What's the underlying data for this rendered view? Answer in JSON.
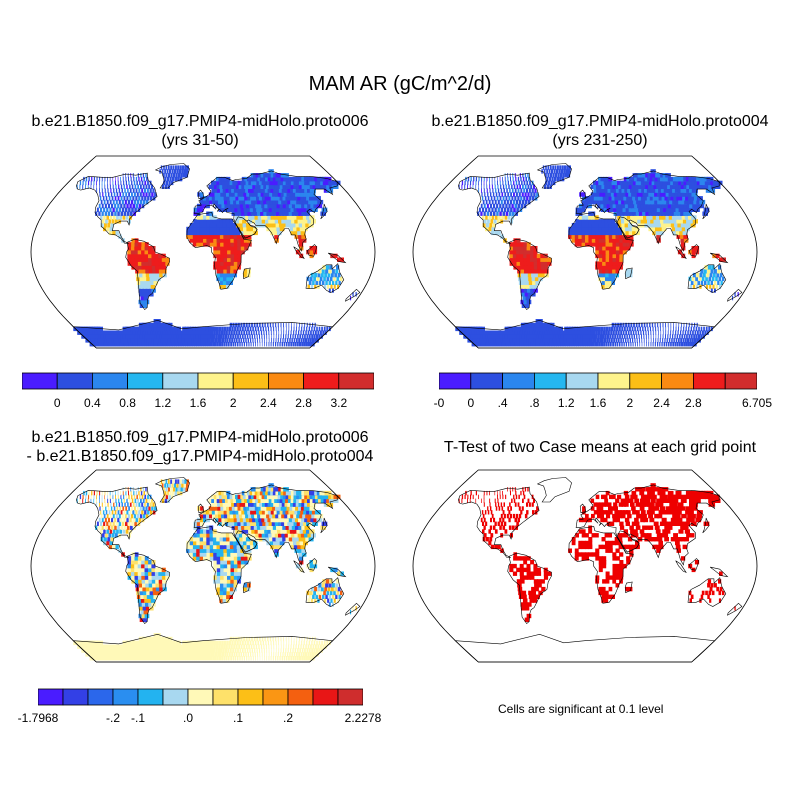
{
  "figure_title": "MAM AR (gC/m^2/d)",
  "panels": {
    "case1": {
      "title_line1": "b.e21.B1850.f09_g17.PMIP4-midHolo.proto006",
      "title_line2": "(yrs 31-50)",
      "colorbar": {
        "colors": [
          "#4a1cff",
          "#2d4fe0",
          "#2b86ee",
          "#25b7f0",
          "#a8d8f0",
          "#fef38c",
          "#fcbf17",
          "#fa8a12",
          "#ee1c1c",
          "#d22d2d"
        ],
        "labels": [
          "0",
          "0.4",
          "0.8",
          "1.2",
          "1.6",
          "2",
          "2.4",
          "2.8",
          "3.2"
        ]
      }
    },
    "case2": {
      "title_line1": "b.e21.B1850.f09_g17.PMIP4-midHolo.proto004",
      "title_line2": "(yrs 231-250)",
      "colorbar": {
        "colors": [
          "#4a1cff",
          "#2d4fe0",
          "#2b86ee",
          "#25b7f0",
          "#a8d8f0",
          "#fef38c",
          "#fcbf17",
          "#fa8a12",
          "#ee1c1c",
          "#d22d2d"
        ],
        "labels": [
          "-0",
          "0",
          ".4",
          ".8",
          "1.2",
          "1.6",
          "2",
          "2.4",
          "2.8",
          "6.705"
        ]
      }
    },
    "diff": {
      "title_line1": "b.e21.B1850.f09_g17.PMIP4-midHolo.proto006",
      "title_line2": "- b.e21.B1850.f09_g17.PMIP4-midHolo.proto004",
      "colorbar": {
        "colors": [
          "#4a1cff",
          "#3340e6",
          "#2b67eb",
          "#2a8ef0",
          "#23b3f0",
          "#a8d8f0",
          "#fff9b8",
          "#fee16a",
          "#fcbf17",
          "#fa9614",
          "#f46010",
          "#e81616",
          "#cf2d2d"
        ],
        "labels": [
          "-1.7968",
          "-.2",
          "-.1",
          ".0",
          ".1",
          ".2",
          "2.2278"
        ]
      }
    },
    "ttest": {
      "title": "T-Test of two Case means at each grid point",
      "note": "Cells are significant at 0.1 level"
    }
  },
  "colors": {
    "ocean": "#ffffff",
    "significant": "#ee0000",
    "coastline": "#000000"
  }
}
